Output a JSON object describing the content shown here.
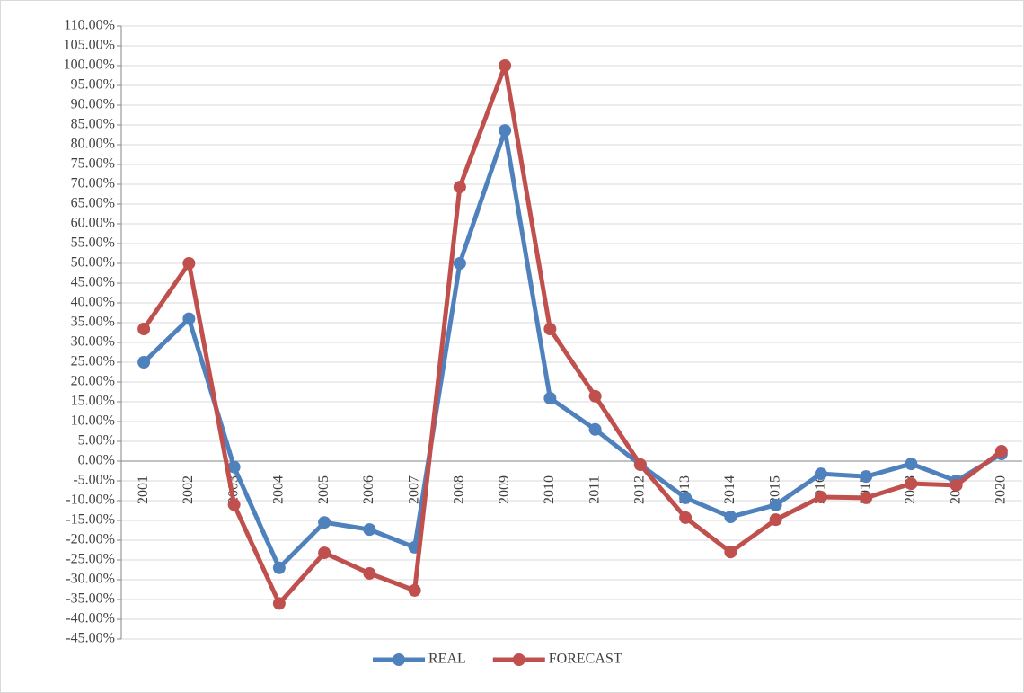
{
  "chart_data": {
    "type": "line",
    "categories": [
      "2001",
      "2002",
      "2003",
      "2004",
      "2005",
      "2006",
      "2007",
      "2008",
      "2009",
      "2010",
      "2011",
      "2012",
      "2013",
      "2014",
      "2015",
      "2016",
      "2017",
      "2018",
      "2019",
      "2020"
    ],
    "series": [
      {
        "name": "REAL",
        "color": "#4f81bd",
        "values": [
          25,
          36,
          -1.5,
          -27,
          -15.5,
          -17.3,
          -21.8,
          50,
          83.6,
          15.9,
          8,
          -0.9,
          -9.3,
          -14.1,
          -11.1,
          -3.2,
          -3.9,
          -0.7,
          -5,
          1.8
        ]
      },
      {
        "name": "FORECAST",
        "color": "#c0504d",
        "values": [
          33.4,
          50,
          -11,
          -36,
          -23.2,
          -28.4,
          -32.7,
          69.3,
          100,
          33.4,
          16.4,
          -0.9,
          -14.3,
          -23,
          -14.8,
          -9.1,
          -9.3,
          -5.7,
          -6.1,
          2.5
        ]
      }
    ],
    "ylim": [
      -45,
      110
    ],
    "yticks": [
      {
        "value": 110,
        "label": "110.00%"
      },
      {
        "value": 105,
        "label": "105.00%"
      },
      {
        "value": 100,
        "label": "100.00%"
      },
      {
        "value": 95,
        "label": "95.00%"
      },
      {
        "value": 90,
        "label": "90.00%"
      },
      {
        "value": 85,
        "label": "85.00%"
      },
      {
        "value": 80,
        "label": "80.00%"
      },
      {
        "value": 75,
        "label": "75.00%"
      },
      {
        "value": 70,
        "label": "70.00%"
      },
      {
        "value": 65,
        "label": "65.00%"
      },
      {
        "value": 60,
        "label": "60.00%"
      },
      {
        "value": 55,
        "label": "55.00%"
      },
      {
        "value": 50,
        "label": "50.00%"
      },
      {
        "value": 45,
        "label": "45.00%"
      },
      {
        "value": 40,
        "label": "40.00%"
      },
      {
        "value": 35,
        "label": "35.00%"
      },
      {
        "value": 30,
        "label": "30.00%"
      },
      {
        "value": 25,
        "label": "25.00%"
      },
      {
        "value": 20,
        "label": "20.00%"
      },
      {
        "value": 15,
        "label": "15.00%"
      },
      {
        "value": 10,
        "label": "10.00%"
      },
      {
        "value": 5,
        "label": "5.00%"
      },
      {
        "value": 0,
        "label": "0.00%"
      },
      {
        "value": -5,
        "label": "-5.00%"
      },
      {
        "value": -10,
        "label": "-10.00%"
      },
      {
        "value": -15,
        "label": "-15.00%"
      },
      {
        "value": -20,
        "label": "-20.00%"
      },
      {
        "value": -25,
        "label": "-25.00%"
      },
      {
        "value": -30,
        "label": "-30.00%"
      },
      {
        "value": -35,
        "label": "-35.00%"
      },
      {
        "value": -40,
        "label": "-40.00%"
      },
      {
        "value": -45,
        "label": "-45.00%"
      }
    ],
    "grid": true,
    "legend": "bottom"
  }
}
